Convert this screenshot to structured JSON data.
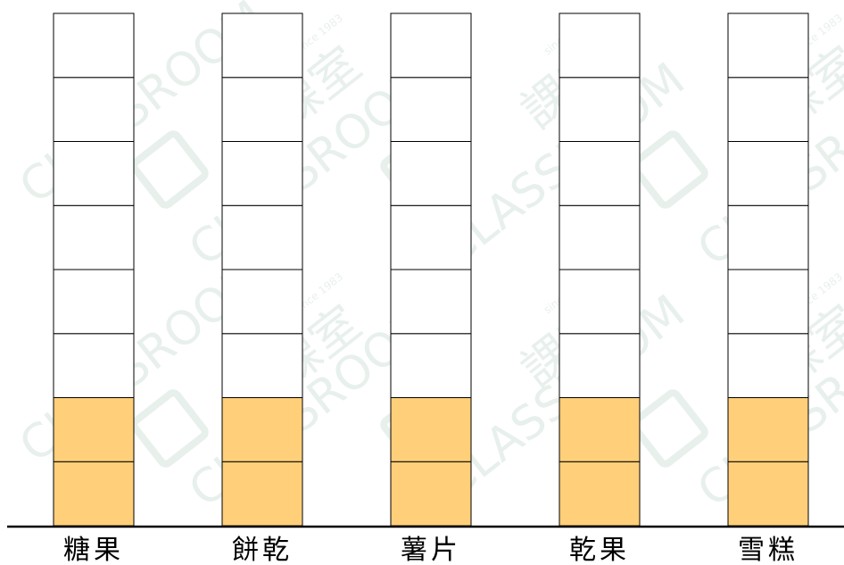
{
  "chart_data": {
    "type": "bar",
    "categories": [
      "糖果",
      "餅乾",
      "薯片",
      "乾果",
      "雪糕"
    ],
    "values": [
      2,
      2,
      2,
      2,
      2
    ],
    "ylim": [
      0,
      8
    ],
    "grid": "unit-cells",
    "title": "",
    "xlabel": "",
    "ylabel": ""
  },
  "colors": {
    "fill": "#FFCF7A",
    "empty": "#FFFFFF",
    "stroke": "#000000",
    "watermark": "#E8F0EC"
  },
  "watermark": {
    "text": "CLASSROOM",
    "small_text": "since 1983",
    "glyphs": "課室"
  }
}
